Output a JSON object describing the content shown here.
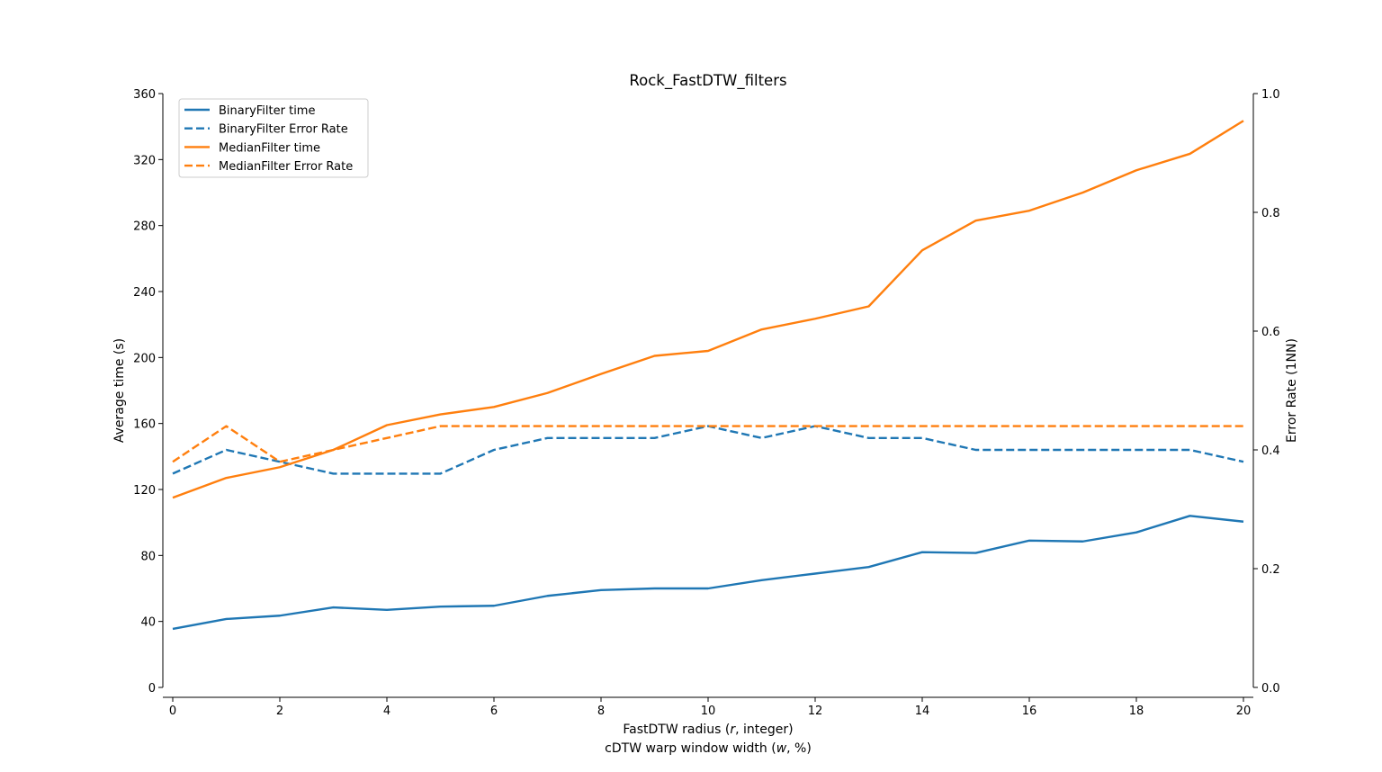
{
  "chart_data": {
    "type": "line",
    "title": "Rock_FastDTW_filters",
    "xlabel": "FastDTW radius (r, integer)",
    "xlabel_prefix": "FastDTW radius (",
    "xlabel_var": "r",
    "xlabel_suffix": ", integer)",
    "xlabel2": "cDTW warp window width (w, %)",
    "xlabel2_prefix": "cDTW warp window width (",
    "xlabel2_var": "w",
    "xlabel2_suffix": ", %)",
    "ylabel": "Average time (s)",
    "ylabel_right": "Error Rate (1NN)",
    "xlim": [
      0,
      20
    ],
    "ylim": [
      0,
      360
    ],
    "ylim_right": [
      0,
      1
    ],
    "x_ticks": [
      "0",
      "2",
      "4",
      "6",
      "8",
      "10",
      "12",
      "14",
      "16",
      "18",
      "20"
    ],
    "y_ticks": [
      "0",
      "40",
      "80",
      "120",
      "160",
      "200",
      "240",
      "280",
      "320",
      "360"
    ],
    "y_ticks_right": [
      "0.0",
      "0.2",
      "0.4",
      "0.6",
      "0.8",
      "1.0"
    ],
    "grid": false,
    "legend_position": "top-left",
    "x": [
      0,
      1,
      2,
      3,
      4,
      5,
      6,
      7,
      8,
      9,
      10,
      11,
      12,
      13,
      14,
      15,
      16,
      17,
      18,
      19,
      20
    ],
    "series": [
      {
        "name": "BinaryFilter time",
        "axis": "left",
        "style": "solid",
        "color": "#1f77b4",
        "values": [
          35.5,
          41.5,
          43.5,
          48.5,
          47,
          49,
          49.5,
          55.5,
          59,
          60,
          60,
          65,
          69,
          73,
          82,
          81.5,
          89,
          88.5,
          94,
          104,
          100.5
        ]
      },
      {
        "name": "BinaryFilter Error Rate",
        "axis": "right",
        "style": "dashed",
        "color": "#1f77b4",
        "values": [
          0.36,
          0.4,
          0.38,
          0.36,
          0.36,
          0.36,
          0.4,
          0.42,
          0.42,
          0.42,
          0.44,
          0.42,
          0.44,
          0.42,
          0.42,
          0.4,
          0.4,
          0.4,
          0.4,
          0.4,
          0.38
        ]
      },
      {
        "name": "MedianFilter time",
        "axis": "left",
        "style": "solid",
        "color": "#ff7f0e",
        "values": [
          115,
          127,
          133.5,
          144,
          159,
          165.5,
          170,
          178.5,
          190,
          201,
          204,
          217,
          223.5,
          231,
          265,
          283,
          289,
          300,
          313.5,
          323.5,
          343.5
        ]
      },
      {
        "name": "MedianFilter Error Rate",
        "axis": "right",
        "style": "dashed",
        "color": "#ff7f0e",
        "values": [
          0.38,
          0.44,
          0.38,
          0.4,
          0.42,
          0.44,
          0.44,
          0.44,
          0.44,
          0.44,
          0.44,
          0.44,
          0.44,
          0.44,
          0.44,
          0.44,
          0.44,
          0.44,
          0.44,
          0.44,
          0.44
        ]
      }
    ]
  }
}
